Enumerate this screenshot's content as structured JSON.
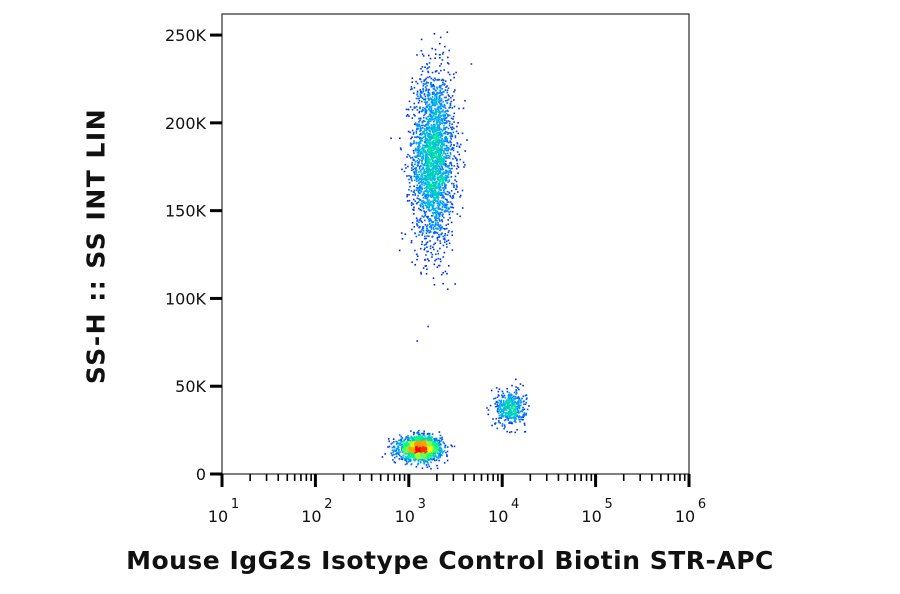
{
  "chart_data": {
    "type": "scatter",
    "style": "density-dot-plot",
    "xlabel": "Mouse IgG2s Isotype Control Biotin STR-APC",
    "ylabel": "SS-H :: SS INT LIN",
    "x_scale": "log",
    "xlim": [
      10,
      1000000
    ],
    "y_scale": "linear",
    "ylim": [
      0,
      262000
    ],
    "x_ticks": [
      {
        "value": 10,
        "base": "10",
        "exp": "1"
      },
      {
        "value": 100,
        "base": "10",
        "exp": "2"
      },
      {
        "value": 1000,
        "base": "10",
        "exp": "3"
      },
      {
        "value": 10000,
        "base": "10",
        "exp": "4"
      },
      {
        "value": 100000,
        "base": "10",
        "exp": "5"
      },
      {
        "value": 1000000,
        "base": "10",
        "exp": "6"
      }
    ],
    "y_ticks": [
      {
        "value": 0,
        "label": "0"
      },
      {
        "value": 50000,
        "label": "50K"
      },
      {
        "value": 100000,
        "label": "100K"
      },
      {
        "value": 150000,
        "label": "150K"
      },
      {
        "value": 200000,
        "label": "200K"
      },
      {
        "value": 250000,
        "label": "250K"
      }
    ],
    "populations": [
      {
        "x_center": 1800,
        "y_center": 180000,
        "x_spread": 1.6,
        "y_spread": 45000,
        "count": 2600
      },
      {
        "x_center": 1300,
        "y_center": 15000,
        "x_spread": 1.6,
        "y_spread": 6000,
        "count": 1800
      },
      {
        "x_center": 12000,
        "y_center": 38000,
        "x_spread": 1.4,
        "y_spread": 9000,
        "count": 450
      }
    ],
    "color_scale": [
      "#0000ff",
      "#00a0ff",
      "#00ff80",
      "#ffff00",
      "#ff0000"
    ],
    "grid": false,
    "legend": "none"
  }
}
